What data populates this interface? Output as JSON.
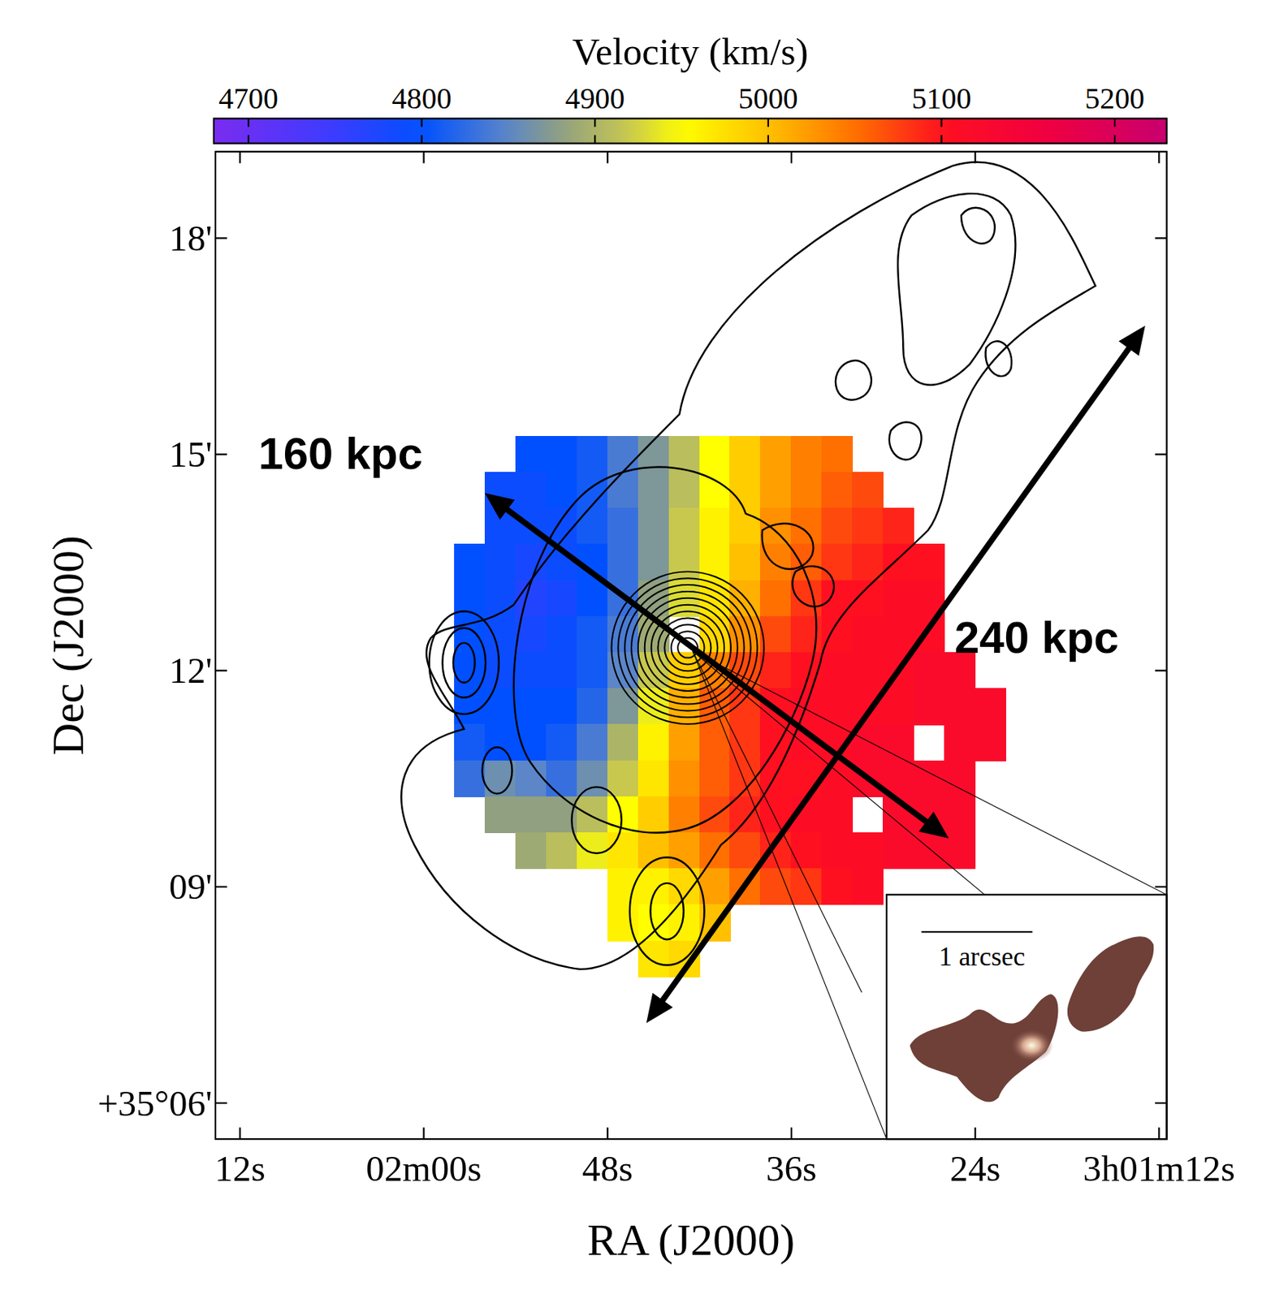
{
  "chart_data": {
    "type": "heatmap",
    "xlabel": "RA (J2000)",
    "ylabel": "Dec (J2000)",
    "xlim": [
      73.6,
      11.5
    ],
    "xticks": [
      {
        "value": 72,
        "label": "12s"
      },
      {
        "value": 60,
        "label": "02m00s"
      },
      {
        "value": 48,
        "label": "48s"
      },
      {
        "value": 36,
        "label": "36s"
      },
      {
        "value": 24,
        "label": "24s"
      },
      {
        "value": 12,
        "label": "3h01m12s"
      }
    ],
    "ylim": [
      5.5,
      19.2
    ],
    "yticks": [
      {
        "value": 6,
        "label": "+35°06'"
      },
      {
        "value": 9,
        "label": "09'"
      },
      {
        "value": 12,
        "label": "12'"
      },
      {
        "value": 15,
        "label": "15'"
      },
      {
        "value": 18,
        "label": "18'"
      }
    ],
    "x": [
      57,
      55,
      53,
      51,
      49,
      47,
      45,
      43,
      41,
      39,
      37,
      35,
      33,
      31,
      29,
      27,
      25,
      23
    ],
    "y": [
      15,
      14.5,
      14,
      13.5,
      13,
      12.5,
      12,
      11.5,
      11,
      10.5,
      10,
      9.5,
      9,
      8.5,
      8
    ],
    "cells": [
      [
        null,
        null,
        4800,
        4800,
        4810,
        4840,
        4870,
        4910,
        4950,
        4990,
        5020,
        5040,
        5050,
        null,
        null,
        null,
        null,
        null
      ],
      [
        null,
        4790,
        4790,
        4800,
        4810,
        4840,
        4870,
        4910,
        4950,
        4990,
        5020,
        5040,
        5060,
        5070,
        null,
        null,
        null,
        null
      ],
      [
        null,
        4790,
        4790,
        4790,
        4810,
        4830,
        4870,
        4920,
        4960,
        4990,
        5030,
        5050,
        5070,
        5080,
        5090,
        null,
        null,
        null
      ],
      [
        4800,
        4790,
        4780,
        4790,
        4800,
        4830,
        4870,
        4920,
        4960,
        5000,
        5040,
        5060,
        5080,
        5090,
        5100,
        5100,
        null,
        null
      ],
      [
        4800,
        4790,
        4770,
        4780,
        4800,
        4830,
        4880,
        4930,
        4970,
        5010,
        5050,
        5080,
        5100,
        5100,
        5110,
        5110,
        null,
        null
      ],
      [
        4800,
        4790,
        4780,
        4790,
        4810,
        4840,
        4890,
        null,
        4980,
        5030,
        5070,
        5090,
        5100,
        5110,
        5110,
        5110,
        null,
        null
      ],
      [
        4800,
        4790,
        4790,
        4790,
        4810,
        4850,
        4920,
        4990,
        5040,
        5070,
        5090,
        5100,
        5110,
        5110,
        5110,
        5120,
        5120,
        null
      ],
      [
        4800,
        4800,
        4800,
        4800,
        4820,
        4870,
        4940,
        5010,
        5060,
        5080,
        5100,
        5110,
        5110,
        5110,
        5110,
        5120,
        5120,
        5120
      ],
      [
        4810,
        4800,
        4800,
        4810,
        4840,
        4900,
        4960,
        5020,
        5060,
        5080,
        5100,
        5110,
        5110,
        5120,
        5120,
        null,
        5120,
        5120
      ],
      [
        4830,
        4860,
        4850,
        4830,
        4860,
        4920,
        4970,
        5030,
        5060,
        5080,
        5100,
        5100,
        5110,
        5120,
        5120,
        5120,
        5120,
        null
      ],
      [
        null,
        4880,
        4880,
        4880,
        4910,
        4950,
        4990,
        5040,
        5070,
        5090,
        5100,
        5110,
        5110,
        null,
        5120,
        5120,
        5120,
        null
      ],
      [
        null,
        null,
        4890,
        4910,
        4940,
        4970,
        5000,
        5020,
        5050,
        5070,
        5090,
        5100,
        5110,
        5110,
        5120,
        5120,
        5120,
        null
      ],
      [
        null,
        null,
        null,
        null,
        null,
        4960,
        4960,
        4980,
        5020,
        5050,
        5070,
        5080,
        5100,
        5110,
        null,
        null,
        null,
        null
      ],
      [
        null,
        null,
        null,
        null,
        null,
        4960,
        4950,
        4960,
        5000,
        null,
        null,
        null,
        null,
        null,
        null,
        null,
        null,
        null
      ],
      [
        null,
        null,
        null,
        null,
        null,
        null,
        4970,
        4980,
        null,
        null,
        null,
        null,
        null,
        null,
        null,
        null,
        null,
        null
      ]
    ],
    "colorbar": {
      "label": "Velocity (km/s)",
      "range": [
        4680,
        5230
      ],
      "ticks": [
        4700,
        4800,
        4900,
        5000,
        5100,
        5200
      ]
    },
    "annotations": [
      "160 kpc",
      "240 kpc"
    ],
    "inset_label": "1 arcsec"
  }
}
